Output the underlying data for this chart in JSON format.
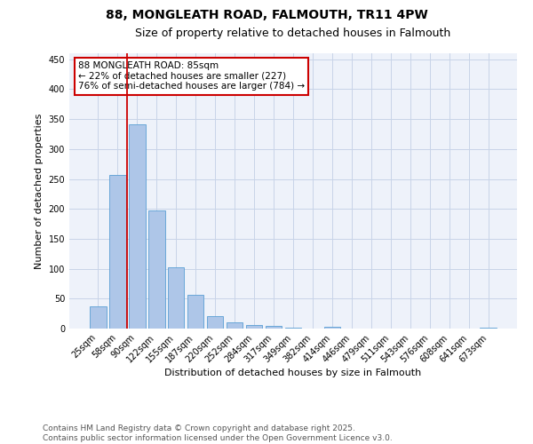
{
  "title": "88, MONGLEATH ROAD, FALMOUTH, TR11 4PW",
  "subtitle": "Size of property relative to detached houses in Falmouth",
  "xlabel": "Distribution of detached houses by size in Falmouth",
  "ylabel": "Number of detached properties",
  "bar_labels": [
    "25sqm",
    "58sqm",
    "90sqm",
    "122sqm",
    "155sqm",
    "187sqm",
    "220sqm",
    "252sqm",
    "284sqm",
    "317sqm",
    "349sqm",
    "382sqm",
    "414sqm",
    "446sqm",
    "479sqm",
    "511sqm",
    "543sqm",
    "576sqm",
    "608sqm",
    "641sqm",
    "673sqm"
  ],
  "bar_values": [
    37,
    256,
    341,
    197,
    102,
    56,
    21,
    11,
    6,
    4,
    2,
    0,
    3,
    0,
    0,
    0,
    0,
    0,
    0,
    0,
    2
  ],
  "bar_color": "#aec6e8",
  "bar_edge_color": "#5a9fd4",
  "vline_x": 1.5,
  "vline_color": "#cc0000",
  "ylim": [
    0,
    460
  ],
  "yticks": [
    0,
    50,
    100,
    150,
    200,
    250,
    300,
    350,
    400,
    450
  ],
  "annotation_title": "88 MONGLEATH ROAD: 85sqm",
  "annotation_line2": "← 22% of detached houses are smaller (227)",
  "annotation_line3": "76% of semi-detached houses are larger (784) →",
  "annotation_box_color": "#cc0000",
  "footnote1": "Contains HM Land Registry data © Crown copyright and database right 2025.",
  "footnote2": "Contains public sector information licensed under the Open Government Licence v3.0.",
  "bg_color": "#eef2fa",
  "grid_color": "#c8d4e8",
  "title_fontsize": 10,
  "subtitle_fontsize": 9,
  "axis_label_fontsize": 8,
  "tick_fontsize": 7,
  "annotation_fontsize": 7.5,
  "footnote_fontsize": 6.5
}
